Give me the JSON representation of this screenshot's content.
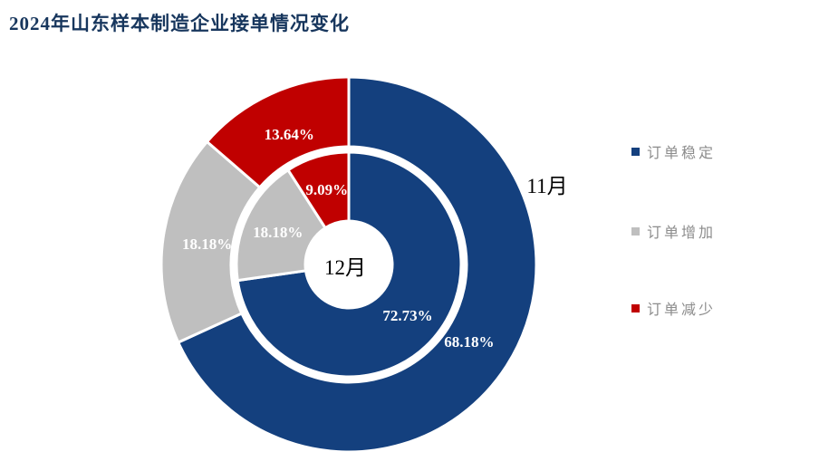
{
  "title": "2024年山东样本制造企业接单情况变化",
  "colors": {
    "title": "#17365D",
    "stable_blue": "#14407E",
    "increase_gray": "#BFBFBF",
    "decrease_red": "#C00000",
    "slice_label_text": "#FFFFFF",
    "legend_text": "#8C8C8C",
    "month_label_text": "#000000"
  },
  "chart_data": {
    "type": "pie",
    "subtype": "nested_donut",
    "title": "2024年山东样本制造企业接单情况变化",
    "categories": [
      "订单稳定",
      "订单增加",
      "订单减少"
    ],
    "category_colors": [
      "#14407E",
      "#BFBFBF",
      "#C00000"
    ],
    "start_angle_deg": 0,
    "direction": "clockwise",
    "legend_position": "right",
    "series": [
      {
        "name": "11月",
        "ring": "outer",
        "values": [
          68.18,
          18.18,
          13.64
        ],
        "value_labels": [
          "68.18%",
          "18.18%",
          "13.64%"
        ]
      },
      {
        "name": "12月",
        "ring": "inner",
        "values": [
          72.73,
          18.18,
          9.09
        ],
        "value_labels": [
          "72.73%",
          "18.18%",
          "9.09%"
        ]
      }
    ]
  },
  "legend": {
    "items": [
      {
        "label": "订单稳定",
        "color": "#14407E"
      },
      {
        "label": "订单增加",
        "color": "#BFBFBF"
      },
      {
        "label": "订单减少",
        "color": "#C00000"
      }
    ]
  }
}
